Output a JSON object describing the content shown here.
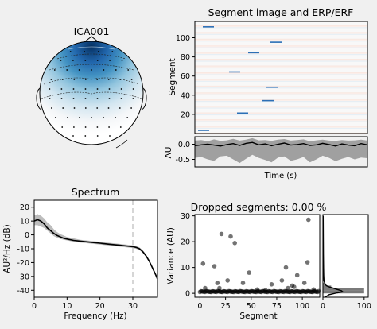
{
  "chart_data": [
    {
      "type": "heatmap",
      "panel": "topomap",
      "title": "ICA001",
      "colormap": "RdBu_r",
      "description_values": {
        "max_weight_location": "frontal",
        "weights_sign": "negative"
      }
    },
    {
      "type": "heatmap",
      "panel": "segment-image",
      "title": "Segment image and ERP/ERF",
      "ylabel": "Segment",
      "yticks": [
        "20",
        "40",
        "60",
        "80",
        "100"
      ],
      "ylim": [
        0,
        117
      ],
      "highlighted_segments": [
        3,
        21,
        34,
        48,
        64,
        84,
        95,
        111
      ],
      "colormap": "RdBu_r"
    },
    {
      "type": "line",
      "panel": "erp",
      "ylabel": "AU",
      "xlabel": "Time (s)",
      "yticks": [
        "0.0",
        "-0.5"
      ],
      "ylim": [
        -0.75,
        0.25
      ],
      "mean": [
        -0.05,
        -0.02,
        0.0,
        -0.03,
        -0.06,
        -0.01,
        0.02,
        -0.04,
        0.03,
        0.06,
        -0.02,
        0.01,
        -0.05,
        0.0,
        0.04,
        -0.03,
        -0.01,
        0.02,
        -0.04,
        -0.02,
        0.03,
        -0.01,
        -0.06,
        0.01,
        -0.03,
        -0.05,
        0.02,
        -0.02
      ],
      "band_lower": [
        -0.45,
        -0.42,
        -0.5,
        -0.55,
        -0.4,
        -0.38,
        -0.5,
        -0.62,
        -0.48,
        -0.35,
        -0.45,
        -0.52,
        -0.6,
        -0.44,
        -0.4,
        -0.55,
        -0.5,
        -0.42,
        -0.6,
        -0.5,
        -0.38,
        -0.45,
        -0.56,
        -0.48,
        -0.42,
        -0.5,
        -0.44,
        -0.46
      ],
      "band_upper": [
        0.12,
        0.14,
        0.1,
        0.16,
        0.11,
        0.13,
        0.18,
        0.12,
        0.15,
        0.2,
        0.13,
        0.14,
        0.11,
        0.15,
        0.17,
        0.12,
        0.14,
        0.16,
        0.1,
        0.13,
        0.15,
        0.12,
        0.11,
        0.14,
        0.12,
        0.13,
        0.15,
        0.12
      ]
    },
    {
      "type": "line",
      "panel": "spectrum",
      "title": "Spectrum",
      "xlabel": "Frequency (Hz)",
      "ylabel": "AU²/Hz (dB)",
      "xticks": [
        "0",
        "10",
        "20",
        "30"
      ],
      "yticks": [
        "20",
        "10",
        "0",
        "-10",
        "-20",
        "-30",
        "-40"
      ],
      "xlim": [
        0,
        37.5
      ],
      "ylim": [
        -45,
        25
      ],
      "vline_x": 30,
      "x": [
        0,
        1,
        2,
        3,
        4,
        5,
        6,
        7,
        8,
        9,
        10,
        12,
        14,
        16,
        18,
        20,
        22,
        24,
        26,
        28,
        30,
        31,
        32,
        33,
        34,
        35,
        36,
        37,
        37.5
      ],
      "mean": [
        10,
        11,
        10,
        8,
        5,
        3,
        1,
        -0.5,
        -1.5,
        -2.5,
        -3,
        -4,
        -4.5,
        -5,
        -5.5,
        -6,
        -6.5,
        -7,
        -7.5,
        -8,
        -8.5,
        -9,
        -10,
        -12,
        -15,
        -19,
        -24,
        -29,
        -32
      ],
      "band_lower": [
        7,
        7,
        6,
        5,
        3,
        1,
        -1,
        -2,
        -3,
        -3.5,
        -4,
        -5,
        -5.5,
        -6,
        -6.5,
        -7,
        -7.5,
        -8,
        -8.5,
        -9,
        -9.5,
        -10,
        -11,
        -13,
        -16,
        -20,
        -25,
        -30,
        -33
      ],
      "band_upper": [
        14,
        15,
        14,
        12,
        9,
        7,
        4,
        2,
        0.5,
        -0.5,
        -1.5,
        -2.5,
        -3.5,
        -4,
        -4.5,
        -5,
        -5.5,
        -6,
        -6.5,
        -7,
        -7.5,
        -8,
        -9,
        -11,
        -14,
        -18,
        -23,
        -28,
        -31
      ]
    },
    {
      "type": "scatter",
      "panel": "dropped-segments",
      "title": "Dropped segments: 0.00 %",
      "xlabel": "Segment",
      "ylabel": "Variance (AU)",
      "xticks": [
        "0",
        "25",
        "50",
        "75",
        "100"
      ],
      "yticks": [
        "0",
        "10",
        "20",
        "30"
      ],
      "xlim": [
        -5,
        117
      ],
      "ylim": [
        -1.5,
        30.5
      ],
      "outliers": [
        [
          3,
          11.5
        ],
        [
          5,
          2
        ],
        [
          14,
          10.5
        ],
        [
          17,
          4
        ],
        [
          19,
          2
        ],
        [
          21,
          23
        ],
        [
          27,
          5
        ],
        [
          30,
          22
        ],
        [
          34,
          19.5
        ],
        [
          42,
          4
        ],
        [
          48,
          8
        ],
        [
          56,
          1.5
        ],
        [
          64,
          1.2
        ],
        [
          70,
          3.5
        ],
        [
          80,
          5
        ],
        [
          84,
          10
        ],
        [
          86,
          2
        ],
        [
          90,
          3
        ],
        [
          92,
          2.5
        ],
        [
          95,
          7
        ],
        [
          102,
          4
        ],
        [
          105,
          12
        ],
        [
          106,
          28.5
        ],
        [
          111,
          1.5
        ]
      ],
      "baseline_count": 117,
      "baseline_value": 0.5
    },
    {
      "type": "area",
      "panel": "variance-histogram",
      "xticks": [
        "0",
        "100"
      ],
      "xlim": [
        0,
        110
      ],
      "ylim": [
        -1.5,
        30.5
      ],
      "bin_centers": [
        0.5,
        1.5,
        2.5,
        3.5
      ],
      "bin_counts": [
        100,
        100,
        20,
        5
      ],
      "density_y": [
        -1.5,
        -0.5,
        0.2,
        0.6,
        1.0,
        1.5,
        2.0,
        2.5,
        3.0,
        4.0,
        5.0,
        7.0,
        10.0,
        15.0,
        20.0,
        25.0,
        30.0
      ],
      "density_x": [
        5,
        15,
        35,
        48,
        45,
        35,
        25,
        15,
        8,
        4,
        2.5,
        2,
        1.5,
        1.2,
        1,
        0.8,
        0.5
      ]
    }
  ]
}
